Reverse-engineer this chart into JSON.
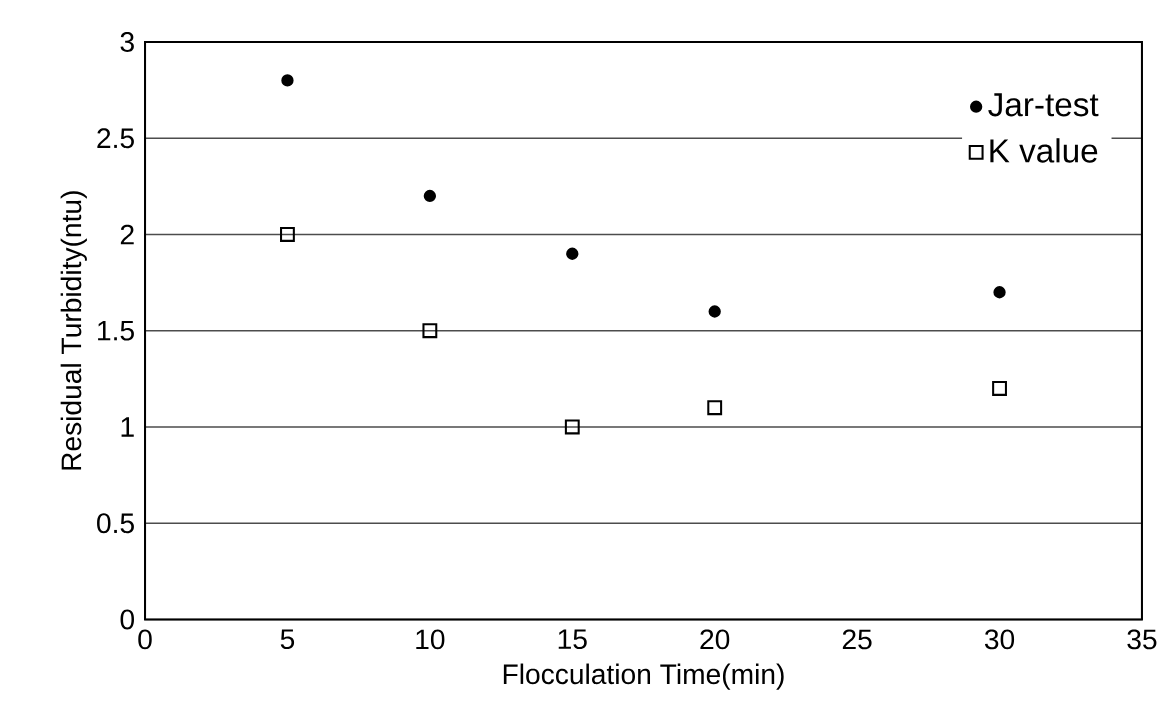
{
  "chart_data": {
    "type": "scatter",
    "xlabel": "Flocculation Time(min)",
    "ylabel": "Residual Turbidity(ntu)",
    "x": [
      5,
      10,
      15,
      20,
      30
    ],
    "series": [
      {
        "name": "Jar-test",
        "color": "#000000",
        "marker": "circle",
        "values": [
          2.8,
          2.2,
          1.9,
          1.6,
          1.7
        ]
      },
      {
        "name": "K value",
        "color": "#000000",
        "marker": "square",
        "values": [
          2.0,
          1.5,
          1.0,
          1.1,
          1.2
        ]
      }
    ],
    "xlim": [
      0,
      35
    ],
    "xticks": [
      0,
      5,
      10,
      15,
      20,
      25,
      30,
      35
    ],
    "ylim": [
      0,
      3
    ],
    "yticks": [
      0,
      0.5,
      1,
      1.5,
      2,
      2.5,
      3
    ],
    "grid": "y",
    "legend": "top right"
  }
}
